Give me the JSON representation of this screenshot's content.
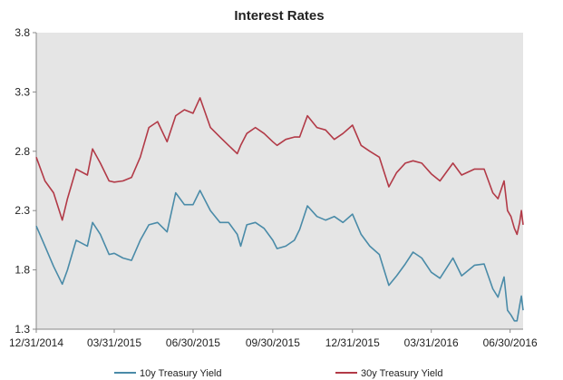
{
  "chart_data": {
    "type": "line",
    "title": "Interest Rates",
    "xlabel": "",
    "ylabel": "",
    "x_tick_labels": [
      "12/31/2014",
      "03/31/2015",
      "06/30/2015",
      "09/30/2015",
      "12/31/2015",
      "03/31/2016",
      "06/30/2016"
    ],
    "y_tick_labels": [
      "1.3",
      "1.8",
      "2.3",
      "2.8",
      "3.3",
      "3.8"
    ],
    "ylim": [
      1.3,
      3.8
    ],
    "xlim": [
      "2014-12-31",
      "2016-07-15"
    ],
    "grid": false,
    "plot_background": "#e5e5e5",
    "legend_position": "bottom",
    "series": [
      {
        "name": "10y Treasury Yield",
        "color": "#4a8ba8",
        "points": [
          [
            "2014-12-31",
            2.17
          ],
          [
            "2015-01-10",
            2.0
          ],
          [
            "2015-01-20",
            1.83
          ],
          [
            "2015-01-30",
            1.68
          ],
          [
            "2015-02-05",
            1.8
          ],
          [
            "2015-02-15",
            2.05
          ],
          [
            "2015-02-28",
            2.0
          ],
          [
            "2015-03-06",
            2.2
          ],
          [
            "2015-03-15",
            2.1
          ],
          [
            "2015-03-25",
            1.93
          ],
          [
            "2015-03-31",
            1.94
          ],
          [
            "2015-04-10",
            1.9
          ],
          [
            "2015-04-20",
            1.88
          ],
          [
            "2015-04-30",
            2.05
          ],
          [
            "2015-05-10",
            2.18
          ],
          [
            "2015-05-20",
            2.2
          ],
          [
            "2015-05-31",
            2.12
          ],
          [
            "2015-06-10",
            2.45
          ],
          [
            "2015-06-20",
            2.35
          ],
          [
            "2015-06-30",
            2.35
          ],
          [
            "2015-07-08",
            2.47
          ],
          [
            "2015-07-20",
            2.3
          ],
          [
            "2015-07-31",
            2.2
          ],
          [
            "2015-08-10",
            2.2
          ],
          [
            "2015-08-20",
            2.1
          ],
          [
            "2015-08-24",
            2.0
          ],
          [
            "2015-08-31",
            2.18
          ],
          [
            "2015-09-10",
            2.2
          ],
          [
            "2015-09-20",
            2.15
          ],
          [
            "2015-09-30",
            2.05
          ],
          [
            "2015-10-05",
            1.98
          ],
          [
            "2015-10-15",
            2.0
          ],
          [
            "2015-10-25",
            2.05
          ],
          [
            "2015-10-31",
            2.14
          ],
          [
            "2015-11-09",
            2.34
          ],
          [
            "2015-11-20",
            2.25
          ],
          [
            "2015-11-30",
            2.22
          ],
          [
            "2015-12-10",
            2.25
          ],
          [
            "2015-12-20",
            2.2
          ],
          [
            "2015-12-31",
            2.27
          ],
          [
            "2016-01-10",
            2.1
          ],
          [
            "2016-01-20",
            2.0
          ],
          [
            "2016-01-31",
            1.93
          ],
          [
            "2016-02-11",
            1.67
          ],
          [
            "2016-02-20",
            1.75
          ],
          [
            "2016-03-01",
            1.85
          ],
          [
            "2016-03-10",
            1.95
          ],
          [
            "2016-03-20",
            1.9
          ],
          [
            "2016-03-31",
            1.78
          ],
          [
            "2016-04-10",
            1.73
          ],
          [
            "2016-04-25",
            1.9
          ],
          [
            "2016-05-05",
            1.75
          ],
          [
            "2016-05-20",
            1.84
          ],
          [
            "2016-05-31",
            1.85
          ],
          [
            "2016-06-10",
            1.64
          ],
          [
            "2016-06-16",
            1.57
          ],
          [
            "2016-06-23",
            1.74
          ],
          [
            "2016-06-27",
            1.46
          ],
          [
            "2016-07-01",
            1.42
          ],
          [
            "2016-07-05",
            1.37
          ],
          [
            "2016-07-08",
            1.37
          ],
          [
            "2016-07-11",
            1.5
          ],
          [
            "2016-07-13",
            1.58
          ],
          [
            "2016-07-15",
            1.46
          ]
        ]
      },
      {
        "name": "30y Treasury Yield",
        "color": "#b23a47",
        "points": [
          [
            "2014-12-31",
            2.75
          ],
          [
            "2015-01-10",
            2.55
          ],
          [
            "2015-01-20",
            2.45
          ],
          [
            "2015-01-30",
            2.22
          ],
          [
            "2015-02-05",
            2.4
          ],
          [
            "2015-02-15",
            2.65
          ],
          [
            "2015-02-28",
            2.6
          ],
          [
            "2015-03-06",
            2.82
          ],
          [
            "2015-03-15",
            2.7
          ],
          [
            "2015-03-25",
            2.55
          ],
          [
            "2015-03-31",
            2.54
          ],
          [
            "2015-04-10",
            2.55
          ],
          [
            "2015-04-20",
            2.58
          ],
          [
            "2015-04-30",
            2.75
          ],
          [
            "2015-05-10",
            3.0
          ],
          [
            "2015-05-20",
            3.05
          ],
          [
            "2015-05-31",
            2.88
          ],
          [
            "2015-06-10",
            3.1
          ],
          [
            "2015-06-20",
            3.15
          ],
          [
            "2015-06-30",
            3.12
          ],
          [
            "2015-07-08",
            3.25
          ],
          [
            "2015-07-20",
            3.0
          ],
          [
            "2015-07-31",
            2.92
          ],
          [
            "2015-08-10",
            2.85
          ],
          [
            "2015-08-20",
            2.78
          ],
          [
            "2015-08-24",
            2.85
          ],
          [
            "2015-08-31",
            2.95
          ],
          [
            "2015-09-10",
            3.0
          ],
          [
            "2015-09-20",
            2.95
          ],
          [
            "2015-09-30",
            2.88
          ],
          [
            "2015-10-05",
            2.85
          ],
          [
            "2015-10-15",
            2.9
          ],
          [
            "2015-10-25",
            2.92
          ],
          [
            "2015-10-31",
            2.92
          ],
          [
            "2015-11-09",
            3.1
          ],
          [
            "2015-11-20",
            3.0
          ],
          [
            "2015-11-30",
            2.98
          ],
          [
            "2015-12-10",
            2.9
          ],
          [
            "2015-12-20",
            2.95
          ],
          [
            "2015-12-31",
            3.02
          ],
          [
            "2016-01-10",
            2.85
          ],
          [
            "2016-01-20",
            2.8
          ],
          [
            "2016-01-31",
            2.75
          ],
          [
            "2016-02-11",
            2.5
          ],
          [
            "2016-02-20",
            2.62
          ],
          [
            "2016-03-01",
            2.7
          ],
          [
            "2016-03-10",
            2.72
          ],
          [
            "2016-03-20",
            2.7
          ],
          [
            "2016-03-31",
            2.61
          ],
          [
            "2016-04-10",
            2.55
          ],
          [
            "2016-04-25",
            2.7
          ],
          [
            "2016-05-05",
            2.6
          ],
          [
            "2016-05-20",
            2.65
          ],
          [
            "2016-05-31",
            2.65
          ],
          [
            "2016-06-10",
            2.45
          ],
          [
            "2016-06-16",
            2.4
          ],
          [
            "2016-06-23",
            2.55
          ],
          [
            "2016-06-27",
            2.3
          ],
          [
            "2016-07-01",
            2.25
          ],
          [
            "2016-07-05",
            2.15
          ],
          [
            "2016-07-08",
            2.1
          ],
          [
            "2016-07-11",
            2.2
          ],
          [
            "2016-07-13",
            2.3
          ],
          [
            "2016-07-15",
            2.18
          ]
        ]
      }
    ]
  }
}
